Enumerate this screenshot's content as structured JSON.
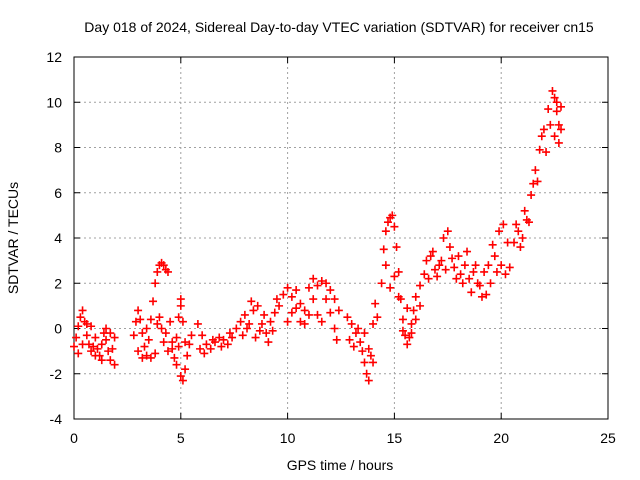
{
  "chart_data": {
    "type": "scatter",
    "title": "Day 018 of 2024, Sidereal Day-to-day VTEC variation (SDTVAR) for receiver cn15",
    "xlabel": "GPS time / hours",
    "ylabel": "SDTVAR / TECUs",
    "xlim": [
      0,
      25
    ],
    "ylim": [
      -4,
      12
    ],
    "x_ticks": [
      0,
      5,
      10,
      15,
      20,
      25
    ],
    "y_ticks": [
      -4,
      -2,
      0,
      2,
      4,
      6,
      8,
      10,
      12
    ],
    "grid": true,
    "marker": "plus",
    "color": "#ff0000",
    "series": [
      {
        "name": "SDTVAR",
        "points": [
          [
            0.0,
            -0.8
          ],
          [
            0.1,
            -0.4
          ],
          [
            0.2,
            0.1
          ],
          [
            0.3,
            0.5
          ],
          [
            0.4,
            0.8
          ],
          [
            0.5,
            0.3
          ],
          [
            0.6,
            -0.3
          ],
          [
            0.7,
            -0.7
          ],
          [
            0.8,
            -1.0
          ],
          [
            0.9,
            -0.8
          ],
          [
            1.0,
            -0.4
          ],
          [
            1.1,
            -0.9
          ],
          [
            1.2,
            -1.2
          ],
          [
            1.3,
            -0.7
          ],
          [
            1.4,
            -0.2
          ],
          [
            1.5,
            -0.5
          ],
          [
            1.6,
            -1.0
          ],
          [
            1.7,
            -1.4
          ],
          [
            1.8,
            -0.9
          ],
          [
            1.9,
            -0.4
          ],
          [
            0.2,
            -1.1
          ],
          [
            0.4,
            -0.7
          ],
          [
            0.6,
            0.2
          ],
          [
            0.8,
            0.1
          ],
          [
            1.0,
            -1.2
          ],
          [
            1.3,
            -1.4
          ],
          [
            1.5,
            0.0
          ],
          [
            1.7,
            -0.2
          ],
          [
            1.9,
            -1.6
          ],
          [
            2.8,
            -0.3
          ],
          [
            2.9,
            0.3
          ],
          [
            3.0,
            0.8
          ],
          [
            3.1,
            0.4
          ],
          [
            3.2,
            -0.2
          ],
          [
            3.3,
            -0.8
          ],
          [
            3.4,
            -1.2
          ],
          [
            3.5,
            -0.5
          ],
          [
            3.6,
            0.4
          ],
          [
            3.7,
            1.2
          ],
          [
            3.8,
            2.0
          ],
          [
            3.9,
            2.5
          ],
          [
            4.0,
            2.8
          ],
          [
            4.1,
            2.9
          ],
          [
            4.2,
            2.8
          ],
          [
            4.3,
            2.6
          ],
          [
            4.4,
            2.5
          ],
          [
            3.0,
            -1.0
          ],
          [
            3.2,
            -1.3
          ],
          [
            3.4,
            0.0
          ],
          [
            3.6,
            -1.3
          ],
          [
            3.8,
            -1.1
          ],
          [
            3.9,
            0.2
          ],
          [
            4.0,
            0.5
          ],
          [
            4.1,
            0.0
          ],
          [
            4.2,
            -0.6
          ],
          [
            4.3,
            -0.2
          ],
          [
            4.4,
            -1.0
          ],
          [
            4.5,
            0.3
          ],
          [
            4.6,
            -0.6
          ],
          [
            4.7,
            -1.3
          ],
          [
            4.8,
            -0.4
          ],
          [
            4.9,
            0.5
          ],
          [
            5.0,
            1.0
          ],
          [
            5.1,
            0.3
          ],
          [
            5.2,
            -0.6
          ],
          [
            5.3,
            -1.2
          ],
          [
            5.4,
            -0.7
          ],
          [
            5.5,
            -0.3
          ],
          [
            4.6,
            -0.9
          ],
          [
            4.8,
            -1.6
          ],
          [
            5.0,
            -2.1
          ],
          [
            5.1,
            -2.3
          ],
          [
            5.2,
            -1.8
          ],
          [
            5.0,
            1.3
          ],
          [
            4.9,
            -0.8
          ],
          [
            5.8,
            0.2
          ],
          [
            6.0,
            -0.3
          ],
          [
            6.2,
            -0.7
          ],
          [
            6.4,
            -0.9
          ],
          [
            6.6,
            -0.6
          ],
          [
            6.8,
            -0.4
          ],
          [
            7.0,
            -0.5
          ],
          [
            7.2,
            -0.7
          ],
          [
            7.4,
            -0.4
          ],
          [
            7.6,
            0.0
          ],
          [
            5.9,
            -0.9
          ],
          [
            6.1,
            -1.1
          ],
          [
            6.5,
            -0.5
          ],
          [
            6.9,
            -0.8
          ],
          [
            7.3,
            -0.2
          ],
          [
            7.8,
            0.3
          ],
          [
            8.0,
            0.6
          ],
          [
            8.2,
            0.2
          ],
          [
            8.4,
            0.8
          ],
          [
            8.6,
            1.0
          ],
          [
            8.8,
            0.2
          ],
          [
            9.0,
            -0.2
          ],
          [
            9.2,
            0.3
          ],
          [
            9.4,
            0.7
          ],
          [
            9.6,
            1.0
          ],
          [
            7.9,
            -0.3
          ],
          [
            8.1,
            0.0
          ],
          [
            8.3,
            1.2
          ],
          [
            8.5,
            -0.4
          ],
          [
            8.7,
            -0.1
          ],
          [
            8.9,
            0.6
          ],
          [
            9.1,
            -0.6
          ],
          [
            9.3,
            -0.1
          ],
          [
            9.5,
            1.3
          ],
          [
            9.8,
            1.5
          ],
          [
            10.0,
            1.8
          ],
          [
            10.2,
            1.4
          ],
          [
            10.4,
            0.9
          ],
          [
            10.6,
            0.3
          ],
          [
            10.8,
            0.2
          ],
          [
            11.0,
            0.6
          ],
          [
            11.2,
            1.3
          ],
          [
            11.4,
            1.9
          ],
          [
            11.6,
            2.1
          ],
          [
            11.8,
            2.0
          ],
          [
            12.0,
            1.7
          ],
          [
            12.2,
            1.3
          ],
          [
            12.4,
            0.8
          ],
          [
            10.0,
            0.3
          ],
          [
            10.2,
            0.7
          ],
          [
            10.4,
            1.7
          ],
          [
            10.6,
            1.1
          ],
          [
            10.8,
            0.8
          ],
          [
            11.0,
            1.8
          ],
          [
            11.2,
            2.2
          ],
          [
            11.4,
            0.6
          ],
          [
            11.6,
            0.3
          ],
          [
            11.8,
            1.3
          ],
          [
            12.0,
            0.7
          ],
          [
            12.2,
            0.0
          ],
          [
            12.3,
            -0.5
          ],
          [
            12.8,
            0.5
          ],
          [
            13.0,
            0.2
          ],
          [
            13.2,
            -0.2
          ],
          [
            13.4,
            -0.6
          ],
          [
            13.5,
            -1.0
          ],
          [
            13.6,
            -1.5
          ],
          [
            13.7,
            -2.0
          ],
          [
            13.8,
            -2.3
          ],
          [
            13.9,
            -1.2
          ],
          [
            14.0,
            0.2
          ],
          [
            14.1,
            1.1
          ],
          [
            14.2,
            0.5
          ],
          [
            12.9,
            -0.5
          ],
          [
            13.1,
            -0.8
          ],
          [
            13.3,
            0.0
          ],
          [
            13.6,
            -0.2
          ],
          [
            13.8,
            -0.9
          ],
          [
            14.0,
            -1.5
          ],
          [
            14.4,
            2.0
          ],
          [
            14.5,
            3.5
          ],
          [
            14.6,
            4.3
          ],
          [
            14.7,
            4.7
          ],
          [
            14.8,
            4.9
          ],
          [
            14.9,
            5.0
          ],
          [
            15.0,
            4.5
          ],
          [
            15.1,
            3.6
          ],
          [
            15.2,
            2.5
          ],
          [
            15.3,
            1.3
          ],
          [
            15.4,
            0.4
          ],
          [
            15.5,
            -0.3
          ],
          [
            15.6,
            -0.7
          ],
          [
            15.7,
            -0.4
          ],
          [
            15.8,
            0.2
          ],
          [
            15.9,
            0.8
          ],
          [
            16.0,
            1.4
          ],
          [
            16.2,
            1.9
          ],
          [
            16.4,
            2.4
          ],
          [
            14.6,
            2.8
          ],
          [
            14.8,
            1.8
          ],
          [
            15.0,
            2.3
          ],
          [
            15.2,
            1.4
          ],
          [
            15.4,
            -0.1
          ],
          [
            15.6,
            0.9
          ],
          [
            15.8,
            -0.2
          ],
          [
            16.0,
            0.4
          ],
          [
            16.2,
            1.0
          ],
          [
            16.5,
            3.0
          ],
          [
            16.7,
            3.2
          ],
          [
            16.9,
            2.6
          ],
          [
            17.1,
            2.8
          ],
          [
            17.3,
            4.0
          ],
          [
            17.5,
            4.3
          ],
          [
            17.7,
            3.1
          ],
          [
            17.9,
            2.2
          ],
          [
            18.1,
            2.4
          ],
          [
            18.3,
            2.8
          ],
          [
            18.5,
            2.2
          ],
          [
            18.7,
            2.5
          ],
          [
            18.9,
            2.0
          ],
          [
            19.1,
            1.4
          ],
          [
            19.3,
            1.5
          ],
          [
            19.5,
            2.0
          ],
          [
            19.7,
            3.2
          ],
          [
            19.9,
            4.3
          ],
          [
            20.1,
            4.6
          ],
          [
            20.3,
            3.8
          ],
          [
            16.6,
            2.2
          ],
          [
            16.8,
            3.4
          ],
          [
            17.0,
            2.3
          ],
          [
            17.2,
            3.0
          ],
          [
            17.4,
            2.6
          ],
          [
            17.6,
            3.6
          ],
          [
            17.8,
            2.7
          ],
          [
            18.0,
            3.2
          ],
          [
            18.2,
            2.0
          ],
          [
            18.4,
            3.4
          ],
          [
            18.6,
            1.6
          ],
          [
            18.8,
            2.8
          ],
          [
            19.0,
            1.9
          ],
          [
            19.2,
            2.5
          ],
          [
            19.4,
            2.8
          ],
          [
            19.6,
            3.7
          ],
          [
            19.8,
            2.5
          ],
          [
            20.0,
            2.8
          ],
          [
            20.2,
            2.4
          ],
          [
            20.4,
            2.7
          ],
          [
            20.6,
            3.8
          ],
          [
            20.8,
            4.3
          ],
          [
            21.0,
            4.0
          ],
          [
            21.2,
            4.8
          ],
          [
            21.4,
            5.9
          ],
          [
            21.6,
            7.0
          ],
          [
            21.8,
            7.9
          ],
          [
            22.0,
            8.8
          ],
          [
            22.2,
            9.7
          ],
          [
            22.4,
            10.5
          ],
          [
            22.5,
            10.2
          ],
          [
            22.6,
            9.6
          ],
          [
            22.7,
            9.0
          ],
          [
            22.8,
            9.8
          ],
          [
            20.7,
            4.6
          ],
          [
            20.9,
            3.6
          ],
          [
            21.1,
            5.2
          ],
          [
            21.3,
            4.7
          ],
          [
            21.5,
            6.4
          ],
          [
            21.7,
            6.5
          ],
          [
            21.9,
            8.5
          ],
          [
            22.1,
            7.8
          ],
          [
            22.3,
            9.0
          ],
          [
            22.5,
            8.5
          ],
          [
            22.6,
            10.0
          ],
          [
            22.7,
            8.2
          ],
          [
            22.8,
            8.8
          ]
        ]
      }
    ]
  }
}
